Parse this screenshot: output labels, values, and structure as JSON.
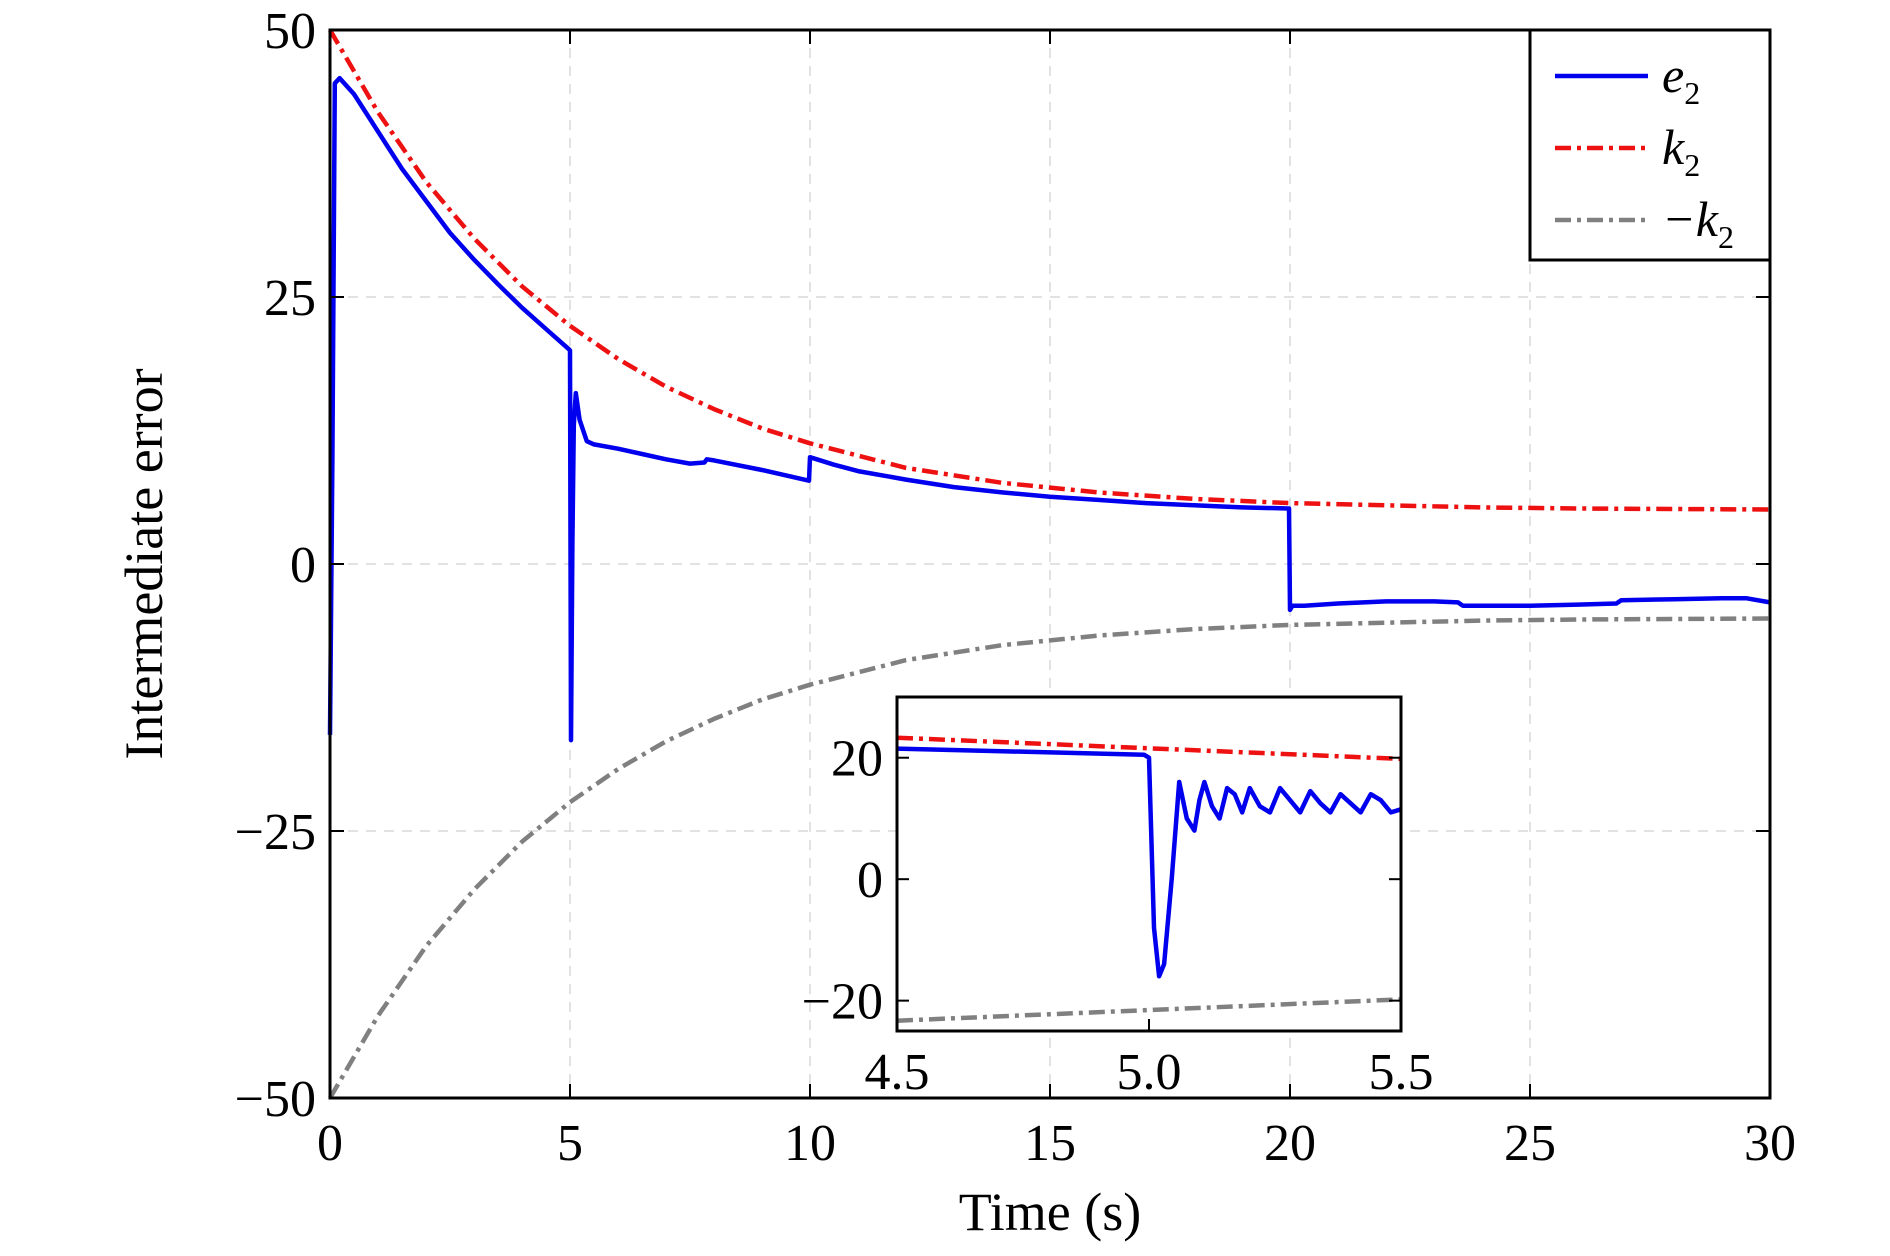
{
  "chart_data": [
    {
      "type": "line",
      "title": "",
      "xlabel": "Time (s)",
      "ylabel": "Intermediate error",
      "xlim": [
        0,
        30
      ],
      "ylim": [
        -50,
        50
      ],
      "xticks": [
        0,
        5,
        10,
        15,
        20,
        25,
        30
      ],
      "xtick_labels": [
        "0",
        "5",
        "10",
        "15",
        "20",
        "25",
        "30"
      ],
      "yticks": [
        -50,
        -25,
        0,
        25,
        50
      ],
      "ytick_labels": [
        "−50",
        "−25",
        "0",
        "25",
        "50"
      ],
      "grid": true,
      "legend_position": "top-right",
      "series": [
        {
          "name": "e",
          "name_sub": "2",
          "color": "#0000ee",
          "style": "solid",
          "x": [
            0,
            0.05,
            0.1,
            0.2,
            0.5,
            1,
            1.5,
            2,
            2.5,
            3,
            3.5,
            4,
            4.5,
            4.98,
            5.0,
            5.02,
            5.05,
            5.08,
            5.12,
            5.2,
            5.35,
            5.5,
            6,
            6.5,
            7,
            7.5,
            7.8,
            7.85,
            8,
            9,
            9.98,
            10.0,
            10.5,
            11,
            12,
            13,
            14,
            15,
            16,
            17,
            18,
            19,
            19.98,
            20.0,
            20.05,
            20.3,
            21,
            22,
            23,
            23.5,
            23.6,
            24,
            25,
            26,
            26.8,
            26.9,
            28,
            29,
            29.5,
            30
          ],
          "y": [
            -16,
            10,
            45,
            45.5,
            44,
            40.5,
            37,
            34,
            31,
            28.5,
            26.2,
            24,
            22,
            20.1,
            20,
            -16.5,
            2,
            13,
            16,
            13.5,
            11.5,
            11.2,
            10.8,
            10.3,
            9.8,
            9.4,
            9.5,
            9.8,
            9.7,
            8.8,
            7.8,
            10,
            9.3,
            8.7,
            7.9,
            7.2,
            6.7,
            6.3,
            6.0,
            5.7,
            5.5,
            5.3,
            5.2,
            -4.3,
            -3.9,
            -3.9,
            -3.7,
            -3.5,
            -3.5,
            -3.6,
            -3.9,
            -3.9,
            -3.9,
            -3.8,
            -3.7,
            -3.4,
            -3.3,
            -3.2,
            -3.2,
            -3.6
          ]
        },
        {
          "name": "k",
          "name_sub": "2",
          "color": "#ee1111",
          "style": "dashdot",
          "x": [
            0,
            1,
            2,
            3,
            4,
            5,
            6,
            7,
            8,
            9,
            10,
            12,
            14,
            16,
            18,
            20,
            22,
            24,
            26,
            28,
            30
          ],
          "y": [
            50,
            42.3,
            35.8,
            30.5,
            26.0,
            22.3,
            19.2,
            16.6,
            14.5,
            12.7,
            11.3,
            9.0,
            7.6,
            6.7,
            6.1,
            5.7,
            5.5,
            5.3,
            5.2,
            5.15,
            5.1
          ]
        },
        {
          "name": "−k",
          "name_sub": "2",
          "color": "#808080",
          "style": "dashdot",
          "x": [
            0,
            1,
            2,
            3,
            4,
            5,
            6,
            7,
            8,
            9,
            10,
            12,
            14,
            16,
            18,
            20,
            22,
            24,
            26,
            28,
            30
          ],
          "y": [
            -50,
            -42.3,
            -35.8,
            -30.5,
            -26.0,
            -22.3,
            -19.2,
            -16.6,
            -14.5,
            -12.7,
            -11.3,
            -9.0,
            -7.6,
            -6.7,
            -6.1,
            -5.7,
            -5.5,
            -5.3,
            -5.2,
            -5.15,
            -5.1
          ]
        }
      ]
    },
    {
      "type": "line",
      "role": "inset",
      "xlim": [
        4.5,
        5.5
      ],
      "ylim": [
        -25,
        30
      ],
      "xticks": [
        4.5,
        5.0,
        5.5
      ],
      "xtick_labels": [
        "4.5",
        "5.0",
        "5.5"
      ],
      "yticks": [
        -20,
        0,
        20
      ],
      "ytick_labels": [
        "−20",
        "0",
        "20"
      ],
      "series": [
        {
          "name": "e",
          "name_sub": "2",
          "color": "#0000ee",
          "x": [
            4.5,
            4.99,
            5.0,
            5.01,
            5.02,
            5.03,
            5.045,
            5.06,
            5.075,
            5.09,
            5.1,
            5.11,
            5.125,
            5.14,
            5.155,
            5.17,
            5.185,
            5.2,
            5.22,
            5.24,
            5.26,
            5.28,
            5.3,
            5.32,
            5.34,
            5.36,
            5.38,
            5.4,
            5.42,
            5.44,
            5.46,
            5.48,
            5.5
          ],
          "y": [
            21.5,
            20.5,
            20,
            -8,
            -16,
            -14,
            0,
            16,
            10,
            8,
            13,
            16,
            12,
            10,
            15,
            14,
            11,
            15,
            12,
            11,
            15,
            13,
            11,
            14.5,
            12.5,
            11,
            14,
            12.5,
            11,
            14,
            13,
            11,
            11.5
          ]
        },
        {
          "name": "k",
          "name_sub": "2",
          "color": "#ee1111",
          "x": [
            4.5,
            5.5
          ],
          "y": [
            23.3,
            19.8
          ]
        },
        {
          "name": "−k",
          "name_sub": "2",
          "color": "#808080",
          "x": [
            4.5,
            5.5
          ],
          "y": [
            -23.3,
            -19.8
          ]
        }
      ]
    }
  ]
}
